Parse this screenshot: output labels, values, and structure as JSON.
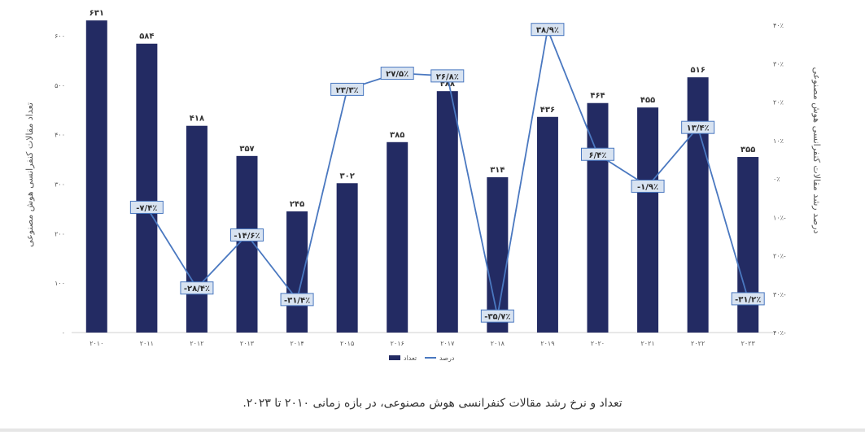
{
  "colors": {
    "bar": "#232B63",
    "line": "#4A78C0",
    "label_box_fill": "#D8E3F1",
    "label_box_stroke": "#4A78C0",
    "axis_text": "#555555"
  },
  "caption": "تعداد و نرخ رشد مقالات کنفرانسی هوش مصنوعی، در بازه زمانی ۲۰۱۰ تا ۲۰۲۳.",
  "chart_data": {
    "type": "bar",
    "categories": [
      "۲۰۱۰",
      "۲۰۱۱",
      "۲۰۱۲",
      "۲۰۱۳",
      "۲۰۱۴",
      "۲۰۱۵",
      "۲۰۱۶",
      "۲۰۱۷",
      "۲۰۱۸",
      "۲۰۱۹",
      "۲۰۲۰",
      "۲۰۲۱",
      "۲۰۲۲",
      "۲۰۲۳"
    ],
    "ylabel_left": "تعداد مقالات کنفرانسی هوش مصنوعی",
    "ylabel_right": "درصد رشد مقالات کنفرانسی هوش مصنوعی",
    "ylim_left": [
      0,
      650
    ],
    "yticks_left": [
      "۰",
      "۱۰۰",
      "۲۰۰",
      "۳۰۰",
      "۴۰۰",
      "۵۰۰",
      "۶۰۰"
    ],
    "ylim_right": [
      -40,
      40
    ],
    "yticks_right": [
      "۴۰٪-",
      "۳۰٪-",
      "۲۰٪-",
      "۱۰٪-",
      "۰٪",
      "۱۰٪",
      "۲۰٪",
      "۳۰٪",
      "۴۰٪"
    ],
    "legend": {
      "position": "bottom",
      "bar_label": "تعداد",
      "line_label": "درصد"
    },
    "series": [
      {
        "name": "تعداد",
        "type": "bar",
        "values": [
          631,
          584,
          418,
          357,
          245,
          302,
          385,
          488,
          314,
          436,
          464,
          455,
          516,
          355
        ],
        "labels": [
          "۶۳۱",
          "۵۸۴",
          "۴۱۸",
          "۳۵۷",
          "۲۴۵",
          "۳۰۲",
          "۳۸۵",
          "۴۸۸",
          "۳۱۴",
          "۴۳۶",
          "۴۶۴",
          "۴۵۵",
          "۵۱۶",
          "۳۵۵"
        ]
      },
      {
        "name": "درصد",
        "type": "line",
        "values": [
          null,
          -7.4,
          -28.4,
          -14.6,
          -31.4,
          23.3,
          27.5,
          26.8,
          -35.7,
          38.9,
          6.4,
          -1.9,
          13.4,
          -31.2
        ],
        "labels": [
          null,
          "-۷/۴٪",
          "-۲۸/۴٪",
          "-۱۴/۶٪",
          "-۳۱/۴٪",
          "۲۳/۳٪",
          "۲۷/۵٪",
          "۲۶/۸٪",
          "-۳۵/۷٪",
          "۳۸/۹٪",
          "۶/۴٪",
          "-۱/۹٪",
          "۱۳/۴٪",
          "-۳۱/۲٪"
        ]
      }
    ]
  }
}
